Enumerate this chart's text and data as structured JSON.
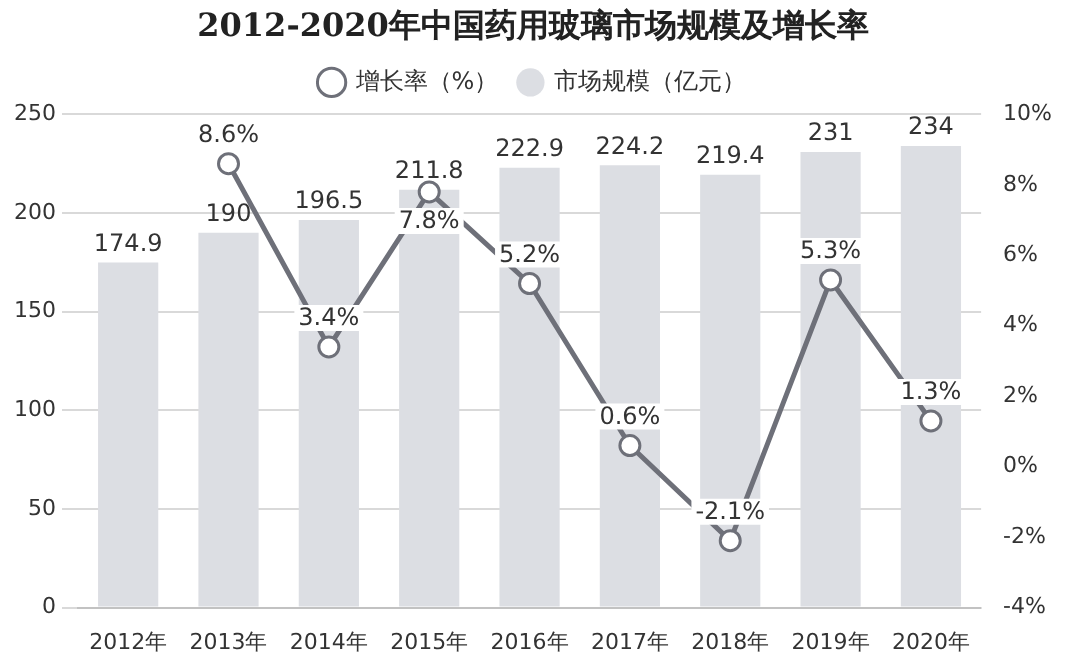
{
  "chart_data": {
    "type": "bar",
    "title": "2012-2020年中国药用玻璃市场规模及增长率",
    "categories": [
      "2012年",
      "2013年",
      "2014年",
      "2015年",
      "2016年",
      "2017年",
      "2018年",
      "2019年",
      "2020年"
    ],
    "series": [
      {
        "name": "市场规模（亿元）",
        "color": "#dcdee3",
        "values": [
          174.9,
          190,
          196.5,
          211.8,
          222.9,
          224.2,
          219.4,
          231,
          234
        ],
        "value_labels": [
          "174.9",
          "190",
          "196.5",
          "211.8",
          "222.9",
          "224.2",
          "219.4",
          "231",
          "234"
        ]
      },
      {
        "name": "增长率（%）",
        "type": "line",
        "axis": "y2",
        "color": "#6e7079",
        "marker": "circle",
        "values": [
          null,
          8.6,
          3.4,
          7.8,
          5.2,
          0.6,
          -2.1,
          5.3,
          1.3
        ],
        "value_labels": [
          null,
          "8.6%",
          "3.4%",
          "7.8%",
          "5.2%",
          "0.6%",
          "-2.1%",
          "5.3%",
          "1.3%"
        ]
      }
    ],
    "ylim": [
      0,
      250
    ],
    "yticks": [
      0,
      50,
      100,
      150,
      200,
      250
    ],
    "y2lim": [
      -4,
      10
    ],
    "y2ticks": [
      {
        "value": -4,
        "label": "-4%"
      },
      {
        "value": -2,
        "label": "-2%"
      },
      {
        "value": 0,
        "label": "0%"
      },
      {
        "value": 2,
        "label": "2%"
      },
      {
        "value": 4,
        "label": "4%"
      },
      {
        "value": 6,
        "label": "6%"
      },
      {
        "value": 8,
        "label": "8%"
      },
      {
        "value": 10,
        "label": "10%"
      }
    ],
    "grid": "y",
    "legend": "top"
  }
}
